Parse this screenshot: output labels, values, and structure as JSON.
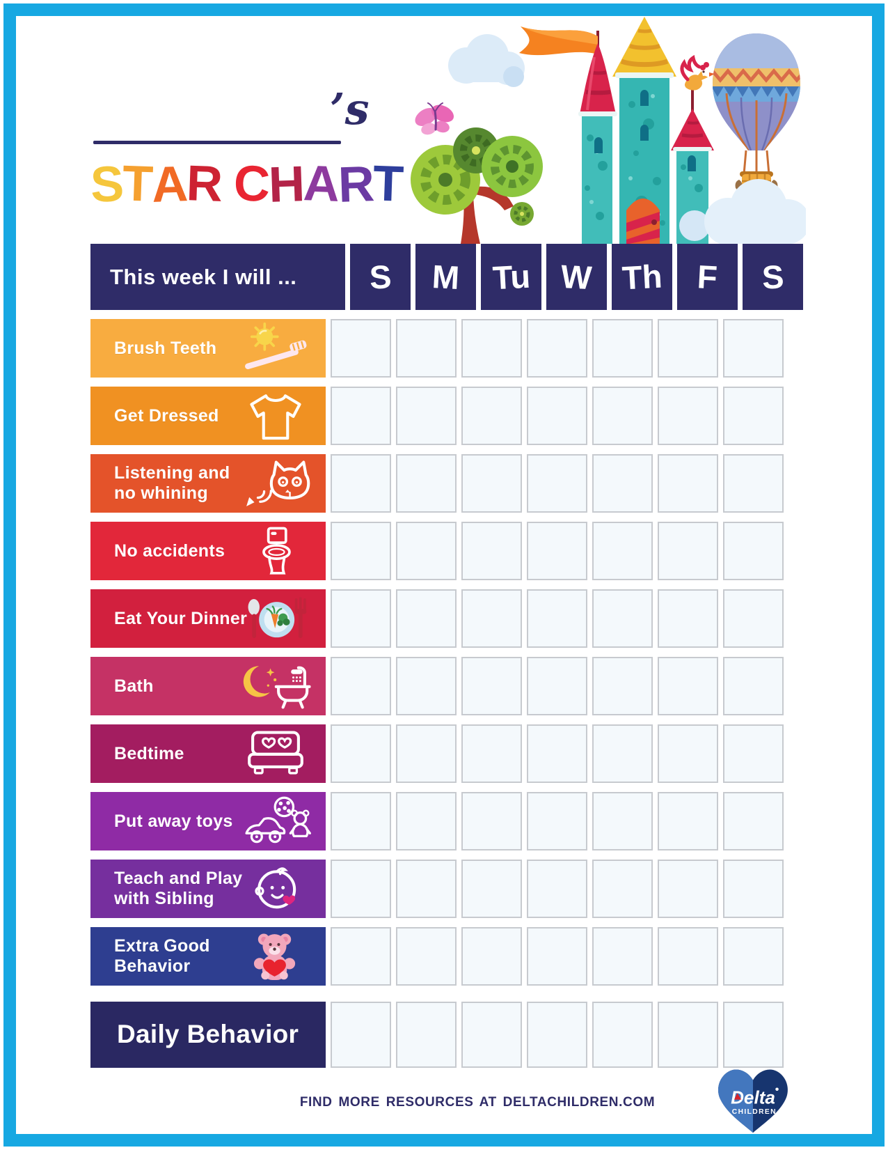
{
  "page": {
    "bg": "#FFFFFF",
    "frame_color": "#17A8E2",
    "navy": "#2F2C68"
  },
  "header": {
    "possessive": "’s",
    "title": "STAR CHART",
    "title_letters": [
      {
        "ch": "S",
        "color": "#F5C63C"
      },
      {
        "ch": "T",
        "color": "#F5A02F"
      },
      {
        "ch": "A",
        "color": "#F16A25"
      },
      {
        "ch": "R",
        "color": "#CD2232"
      },
      {
        "ch": " "
      },
      {
        "ch": "C",
        "color": "#E92532"
      },
      {
        "ch": "H",
        "color": "#B32348"
      },
      {
        "ch": "A",
        "color": "#8D3A9E"
      },
      {
        "ch": "R",
        "color": "#6B3AA3"
      },
      {
        "ch": "T",
        "color": "#2E3E9C"
      }
    ],
    "illustration": "castle-tree-balloon-illustration"
  },
  "table": {
    "header_label": "This week I will ...",
    "header_bg": "#2F2C68",
    "days": [
      "S",
      "M",
      "Tu",
      "W",
      "Th",
      "F",
      "S"
    ],
    "cell": {
      "fill": "#F4F9FC",
      "border": "#C7CACF"
    },
    "rows": [
      {
        "label": "Brush Teeth",
        "color": "#F8AC40",
        "icon": "sun-toothbrush-icon"
      },
      {
        "label": "Get Dressed",
        "color": "#F09122",
        "icon": "tshirt-icon"
      },
      {
        "label": "Listening and\nno whining",
        "color": "#E4532A",
        "icon": "cat-megaphone-icon"
      },
      {
        "label": "No accidents",
        "color": "#E2273A",
        "icon": "toilet-icon"
      },
      {
        "label": "Eat Your Dinner",
        "color": "#D2203E",
        "icon": "dinner-plate-icon"
      },
      {
        "label": "Bath",
        "color": "#C53265",
        "icon": "moon-bathtub-icon"
      },
      {
        "label": "Bedtime",
        "color": "#A31D60",
        "icon": "bed-icon"
      },
      {
        "label": "Put away toys",
        "color": "#8F2BA5",
        "icon": "toys-icon"
      },
      {
        "label": "Teach and Play\nwith Sibling",
        "color": "#762F9E",
        "icon": "baby-face-icon"
      },
      {
        "label": "Extra Good\nBehavior",
        "color": "#2E3E90",
        "icon": "teddy-bear-icon"
      }
    ],
    "daily_row": {
      "label": "Daily Behavior",
      "color": "#2A2862"
    }
  },
  "footer": {
    "text": "FIND MORE RESOURCES AT DELTACHILDREN.COM",
    "logo": {
      "brand": "Delta",
      "sub": "CHILDREN",
      "heart_left": "#4377BE",
      "heart_right": "#17356F",
      "accent_red": "#D8232A"
    }
  }
}
